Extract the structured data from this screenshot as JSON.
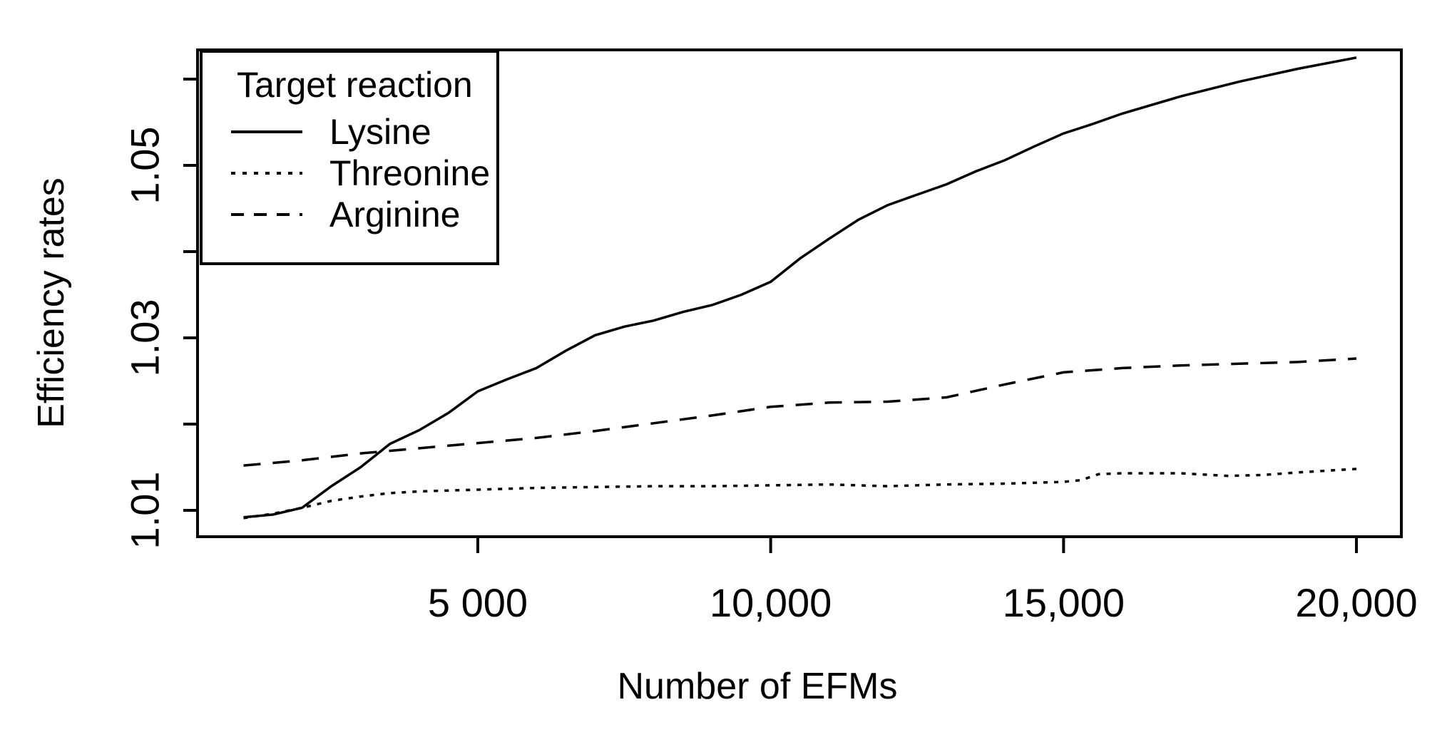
{
  "figure": {
    "background": "#ffffff",
    "line_color": "#000000",
    "text_color": "#000000"
  },
  "chart_data": {
    "type": "line",
    "title": "",
    "xlabel": "Number of EFMs",
    "ylabel": "Efficiency rates",
    "xlim": [
      0,
      20750
    ],
    "ylim": [
      1.0069,
      1.0634
    ],
    "grid": false,
    "legend": {
      "title": "Target reaction",
      "position": "top-left"
    },
    "x_ticks": [
      {
        "value": 5000,
        "label": "5 000"
      },
      {
        "value": 10000,
        "label": "10,000"
      },
      {
        "value": 15000,
        "label": "15,000"
      },
      {
        "value": 20000,
        "label": "20,000"
      }
    ],
    "y_ticks": [
      {
        "value": 1.01,
        "label": "1.01"
      },
      {
        "value": 1.02,
        "label": ""
      },
      {
        "value": 1.03,
        "label": "1.03"
      },
      {
        "value": 1.04,
        "label": ""
      },
      {
        "value": 1.05,
        "label": "1.05"
      },
      {
        "value": 1.06,
        "label": ""
      }
    ],
    "series": [
      {
        "name": "Lysine",
        "line_style": "solid",
        "color": "#000000",
        "x": [
          1000,
          1500,
          2000,
          2500,
          3000,
          3500,
          4000,
          4500,
          5000,
          5500,
          6000,
          6500,
          7000,
          7500,
          8000,
          8500,
          9000,
          9500,
          10000,
          10500,
          11000,
          11500,
          12000,
          12500,
          13000,
          13500,
          14000,
          14500,
          15000,
          15500,
          16000,
          17000,
          18000,
          19000,
          20000
        ],
        "y": [
          1.0092,
          1.0095,
          1.0103,
          1.0128,
          1.015,
          1.0177,
          1.0193,
          1.0213,
          1.0238,
          1.0252,
          1.0265,
          1.0285,
          1.0303,
          1.0313,
          1.032,
          1.033,
          1.0338,
          1.035,
          1.0365,
          1.0392,
          1.0415,
          1.0437,
          1.0454,
          1.0466,
          1.0478,
          1.0493,
          1.0506,
          1.0522,
          1.0537,
          1.0548,
          1.056,
          1.058,
          1.0597,
          1.0612,
          1.0625
        ]
      },
      {
        "name": "Threonine",
        "line_style": "dotted",
        "color": "#000000",
        "x": [
          1000,
          1500,
          2000,
          2500,
          3000,
          3500,
          4000,
          5000,
          6000,
          7000,
          8000,
          9000,
          10000,
          11000,
          12000,
          13000,
          14000,
          15000,
          15300,
          15600,
          16000,
          17000,
          17800,
          18400,
          19000,
          20000
        ],
        "y": [
          1.0091,
          1.0096,
          1.0103,
          1.0111,
          1.0116,
          1.012,
          1.0122,
          1.0124,
          1.0126,
          1.0127,
          1.0128,
          1.0128,
          1.0129,
          1.013,
          1.0128,
          1.013,
          1.0131,
          1.0133,
          1.0135,
          1.0142,
          1.0143,
          1.0143,
          1.014,
          1.0141,
          1.0144,
          1.0148
        ]
      },
      {
        "name": "Arginine",
        "line_style": "dashed",
        "color": "#000000",
        "x": [
          1000,
          2000,
          3000,
          4000,
          5000,
          6000,
          7000,
          8000,
          9000,
          10000,
          11000,
          12000,
          13000,
          14000,
          15000,
          16000,
          17000,
          18000,
          19000,
          20000
        ],
        "y": [
          1.0152,
          1.0158,
          1.0166,
          1.0172,
          1.0178,
          1.0184,
          1.0192,
          1.0201,
          1.021,
          1.022,
          1.0225,
          1.0226,
          1.0231,
          1.0246,
          1.026,
          1.0265,
          1.0268,
          1.027,
          1.0272,
          1.0276
        ]
      }
    ]
  }
}
